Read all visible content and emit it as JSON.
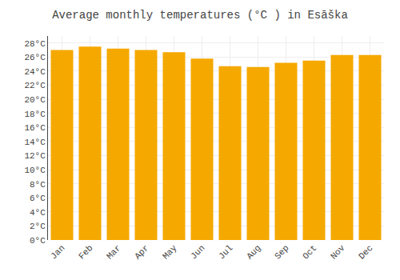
{
  "chart_data": {
    "type": "bar",
    "title": "Average monthly temperatures (°C ) in Esāška",
    "categories": [
      "Jan",
      "Feb",
      "Mar",
      "Apr",
      "May",
      "Jun",
      "Jul",
      "Aug",
      "Sep",
      "Oct",
      "Nov",
      "Dec"
    ],
    "values": [
      27.0,
      27.5,
      27.2,
      27.0,
      26.7,
      25.8,
      24.7,
      24.6,
      25.2,
      25.5,
      26.3,
      26.3
    ],
    "color": "#F5A800",
    "ylim": [
      0,
      29
    ],
    "yticks": [
      {
        "value": 0,
        "label": "0°C"
      },
      {
        "value": 2,
        "label": "2°C"
      },
      {
        "value": 4,
        "label": "4°C"
      },
      {
        "value": 6,
        "label": "6°C"
      },
      {
        "value": 8,
        "label": "8°C"
      },
      {
        "value": 10,
        "label": "10°C"
      },
      {
        "value": 12,
        "label": "12°C"
      },
      {
        "value": 14,
        "label": "14°C"
      },
      {
        "value": 16,
        "label": "16°C"
      },
      {
        "value": 18,
        "label": "18°C"
      },
      {
        "value": 20,
        "label": "20°C"
      },
      {
        "value": 22,
        "label": "22°C"
      },
      {
        "value": 24,
        "label": "24°C"
      },
      {
        "value": 26,
        "label": "26°C"
      },
      {
        "value": 28,
        "label": "28°C"
      }
    ],
    "grid": true
  }
}
